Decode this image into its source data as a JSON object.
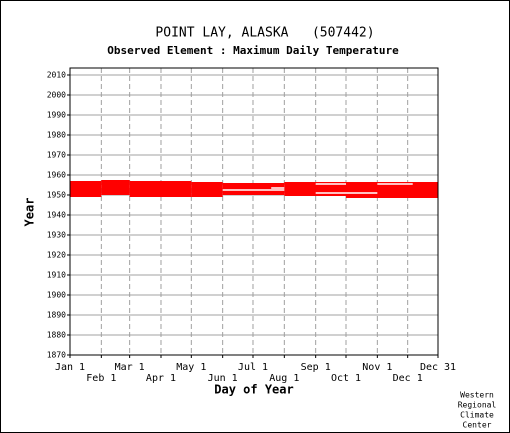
{
  "chart_data": {
    "type": "availability",
    "title": "POINT LAY, ALASKA   (507442)",
    "subtitle": "Observed Element : Maximum Daily Temperature",
    "x_label": "Day of Year",
    "y_label": "Year",
    "credit": [
      "Western",
      "Regional",
      "Climate",
      "Center"
    ],
    "color": "#ff0000",
    "gap_color": "#ffffff",
    "xlim": [
      1,
      365
    ],
    "ylim": [
      1870,
      2013.5
    ],
    "yticks": [
      1870,
      1880,
      1890,
      1900,
      1910,
      1920,
      1930,
      1940,
      1950,
      1960,
      1970,
      1980,
      1990,
      2000,
      2010
    ],
    "xticks": [
      {
        "value": 1,
        "label": "Jan 1"
      },
      {
        "value": 32,
        "label": "Feb 1"
      },
      {
        "value": 60,
        "label": "Mar 1"
      },
      {
        "value": 91,
        "label": "Apr 1"
      },
      {
        "value": 121,
        "label": "May 1"
      },
      {
        "value": 152,
        "label": "Jun 1"
      },
      {
        "value": 182,
        "label": "Jul 1"
      },
      {
        "value": 213,
        "label": "Aug 1"
      },
      {
        "value": 244,
        "label": "Sep 1"
      },
      {
        "value": 274,
        "label": "Oct 1"
      },
      {
        "value": 305,
        "label": "Nov 1"
      },
      {
        "value": 335,
        "label": "Dec 1"
      },
      {
        "value": 365,
        "label": "Dec 31"
      }
    ],
    "grid": true,
    "blocks": [
      {
        "x": [
          1,
          32
        ],
        "y": [
          1949,
          1957
        ]
      },
      {
        "x": [
          32,
          60
        ],
        "y": [
          1950,
          1957.5
        ]
      },
      {
        "x": [
          60,
          121
        ],
        "y": [
          1949,
          1957
        ]
      },
      {
        "x": [
          121,
          152
        ],
        "y": [
          1949,
          1956.5
        ]
      },
      {
        "x": [
          152,
          213
        ],
        "y": [
          1950,
          1956
        ]
      },
      {
        "x": [
          213,
          274
        ],
        "y": [
          1949.5,
          1956.5
        ]
      },
      {
        "x": [
          274,
          365
        ],
        "y": [
          1948.5,
          1956.5
        ]
      }
    ],
    "gaps": [
      {
        "x": [
          152,
          213
        ],
        "y": 1952.5
      },
      {
        "x": [
          244,
          305
        ],
        "y": 1951
      },
      {
        "x": [
          244,
          274
        ],
        "y": 1955.5
      },
      {
        "x": [
          305,
          340
        ],
        "y": 1955.5
      },
      {
        "x": [
          200,
          213
        ],
        "y": 1953.5
      }
    ]
  }
}
